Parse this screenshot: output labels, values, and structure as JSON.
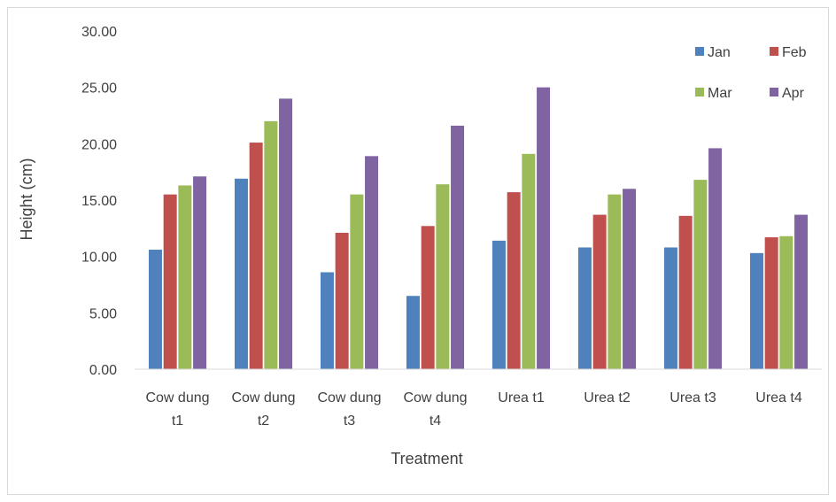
{
  "chart_data": {
    "type": "bar",
    "xlabel": "Treatment",
    "ylabel": "Height (cm)",
    "ylim": [
      0,
      30
    ],
    "yticks": [
      "0.00",
      "5.00",
      "10.00",
      "15.00",
      "20.00",
      "25.00",
      "30.00"
    ],
    "grid": false,
    "legend_position": "top-right",
    "categories": [
      [
        "Cow dung",
        "t1"
      ],
      [
        "Cow dung",
        "t2"
      ],
      [
        "Cow dung",
        "t3"
      ],
      [
        "Cow dung",
        "t4"
      ],
      [
        "Urea t1"
      ],
      [
        "Urea t2"
      ],
      [
        "Urea t3"
      ],
      [
        "Urea t4"
      ]
    ],
    "series": [
      {
        "name": "Jan",
        "color": "#4f81bd",
        "values": [
          10.6,
          16.9,
          8.6,
          6.5,
          11.4,
          10.8,
          10.8,
          10.3
        ]
      },
      {
        "name": "Feb",
        "color": "#c0504d",
        "values": [
          15.5,
          20.1,
          12.1,
          12.7,
          15.7,
          13.7,
          13.6,
          11.7
        ]
      },
      {
        "name": "Mar",
        "color": "#9bbb59",
        "values": [
          16.3,
          22.0,
          15.5,
          16.4,
          19.1,
          15.5,
          16.8,
          11.8
        ]
      },
      {
        "name": "Apr",
        "color": "#8064a2",
        "values": [
          17.1,
          24.0,
          18.9,
          21.6,
          25.0,
          16.0,
          19.6,
          13.7
        ]
      }
    ]
  }
}
